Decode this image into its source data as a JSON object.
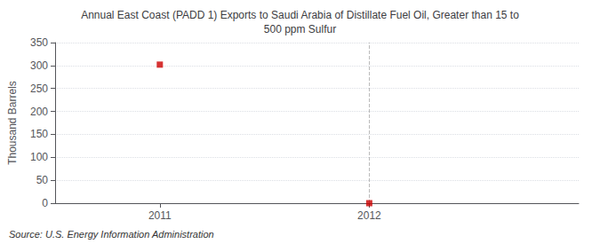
{
  "chart_data": {
    "type": "scatter",
    "title": "Annual East Coast (PADD 1) Exports to Saudi Arabia of Distillate Fuel Oil, Greater than 15 to\n500 ppm Sulfur",
    "ylabel": "Thousand Barrels",
    "source": "Source: U.S. Energy Information Administration",
    "x": [
      2011,
      2012
    ],
    "values": [
      302,
      0
    ],
    "color": "#cc0000",
    "marker": "square",
    "xlim": [
      2010.5,
      2013.0
    ],
    "xticks": [
      2011,
      2012
    ],
    "ylim": [
      0,
      350
    ],
    "yticks": [
      0,
      50,
      100,
      150,
      200,
      250,
      300,
      350
    ],
    "vline": 2012,
    "grid": true
  }
}
